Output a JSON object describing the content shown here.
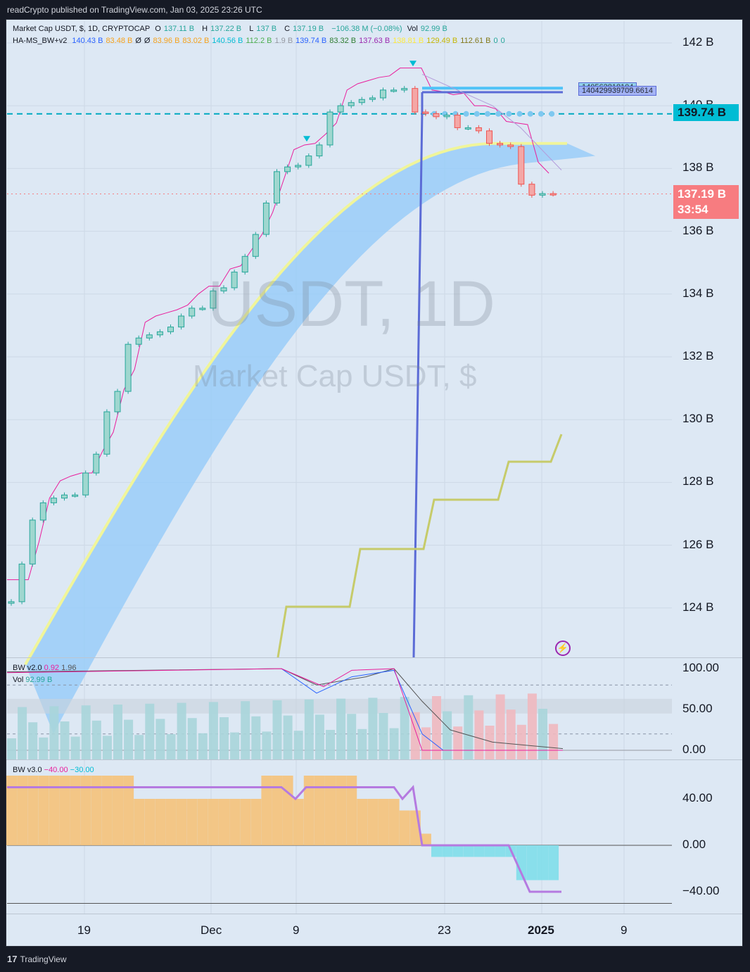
{
  "header": {
    "published": "readCrypto published on TradingView.com, Jan 03, 2025 23:26 UTC"
  },
  "legend": {
    "symbol": "Market Cap USDT, $, 1D, CRYPTOCAP",
    "o_label": "O",
    "o": "137.11 B",
    "h_label": "H",
    "h": "137.22 B",
    "l_label": "L",
    "l": "137 B",
    "c_label": "C",
    "c": "137.19 B",
    "change": "−106.38 M (−0.08%)",
    "vol_label": "Vol",
    "vol": "92.99 B",
    "indicator_name": "HA-MS_BW+v2",
    "ind_values": [
      "140.43 B",
      "83.48 B",
      "Ø",
      "Ø",
      "83.96 B",
      "83.02 B",
      "140.56 B",
      "112.2 B",
      "1.9 B",
      "139.74 B",
      "83.32 B",
      "137.63 B",
      "138.81 B",
      "129.49 B",
      "112.61 B",
      "0",
      "0"
    ],
    "ind_colors": [
      "#2962ff",
      "#f7a21b",
      "#131722",
      "#131722",
      "#f7a21b",
      "#f7a21b",
      "#00bcd4",
      "#4caf50",
      "#9598a1",
      "#2962ff",
      "#2e7d32",
      "#9c27b0",
      "#ffeb3b",
      "#c6b600",
      "#827717",
      "#26a69a",
      "#26a69a"
    ]
  },
  "watermark": {
    "big": "USDT, 1D",
    "small": "Market Cap USDT, $"
  },
  "price_axis": {
    "labels": [
      "142 B",
      "140 B",
      "138 B",
      "136 B",
      "134 B",
      "132 B",
      "130 B",
      "128 B",
      "126 B",
      "124 B"
    ]
  },
  "price_tags": {
    "line_price": "139.74 B",
    "last_price": "137.19 B",
    "countdown": "33:54"
  },
  "hline_labels": [
    "140562818104",
    "140429939709.6614"
  ],
  "bw2": {
    "name": "BW v2.0",
    "v1": "0.92",
    "v2": "1.96",
    "vol_name": "Vol",
    "vol_value": "92.99 B",
    "axis": [
      "100.00",
      "50.00",
      "0.00"
    ]
  },
  "bw3": {
    "name": "BW v3.0",
    "v1": "−40.00",
    "v2": "−30.00",
    "axis": [
      "40.00",
      "0.00",
      "−40.00"
    ]
  },
  "x_axis": [
    "19",
    "Dec",
    "9",
    "23",
    "2025",
    "9"
  ],
  "footer": {
    "brand": "TradingView"
  },
  "colors": {
    "bg": "#dde8f4",
    "up": "#26a69a",
    "down": "#ef5350",
    "cyan": "#00bcd4",
    "blue_line": "#5b6bd6",
    "magenta": "#e91e9c",
    "band": "#90caf9",
    "orange": "#f5c27a"
  },
  "chart_data": {
    "type": "candlestick",
    "ylabel": "",
    "ylim": [
      122.5,
      143
    ],
    "series": [
      {
        "name": "close",
        "values": [
          124.2,
          125.4,
          126.8,
          127.35,
          127.5,
          127.6,
          127.6,
          128.3,
          128.9,
          130.25,
          130.9,
          132.4,
          132.6,
          132.7,
          132.8,
          132.95,
          133.3,
          133.55,
          133.55,
          134.1,
          134.2,
          134.7,
          135.2,
          135.9,
          136.9,
          137.9,
          138.05,
          138.1,
          138.4,
          138.75,
          139.8,
          140.0,
          140.1,
          140.2,
          140.25,
          140.5,
          140.5,
          140.55,
          139.8,
          139.75,
          139.65,
          139.7,
          139.3,
          139.3,
          139.2,
          138.8,
          138.75,
          138.7,
          137.5,
          137.15,
          137.2,
          137.19
        ]
      }
    ],
    "bw2": {
      "range": [
        0,
        100
      ]
    },
    "bw3": {
      "range": [
        -50,
        50
      ]
    }
  }
}
